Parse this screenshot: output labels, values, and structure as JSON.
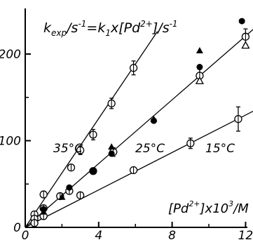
{
  "chart_data": {
    "type": "scatter",
    "title": "k_exp / s⁻¹ = k₁ × [Pd²⁺] / s⁻¹",
    "title_parts": {
      "a": "k",
      "a_sub": "exp",
      "b": "/s",
      "b_sup": "-1",
      "c": "=k",
      "c_sub": "1",
      "d": "x[Pd",
      "d_sup": "2+",
      "e": "]/s",
      "e_sup": "-1"
    },
    "xlabel": "[Pd²⁺]×10³/M",
    "xlabel_parts": {
      "a": "[Pd",
      "a_sup": "2+",
      "b": "]x10",
      "b_sup": "3",
      "c": "/M"
    },
    "ylabel": "",
    "xlim": [
      0,
      12.5
    ],
    "ylim": [
      0,
      250
    ],
    "x_ticks": [
      0,
      4,
      8,
      12
    ],
    "x_tick_labels": [
      "0",
      "4",
      "8",
      "12"
    ],
    "y_ticks": [
      0,
      100,
      200
    ],
    "y_tick_labels": [
      "0",
      "100",
      "200"
    ],
    "grid": false,
    "series": [
      {
        "name": "35°C",
        "marker": "open-circle-tick",
        "fit_slope": 31.4,
        "fit_x_end": 7.2,
        "points": [
          [
            0.5,
            15
          ],
          [
            1,
            38
          ],
          [
            1.9,
            36
          ],
          [
            2.5,
            69
          ],
          [
            3.0,
            89
          ],
          [
            3.7,
            107
          ],
          [
            4.7,
            143
          ],
          [
            5.9,
            184
          ]
        ],
        "error_bars": [
          null,
          null,
          null,
          null,
          5,
          6,
          6,
          8
        ]
      },
      {
        "name": "25°C",
        "marker": "open-circle-tick",
        "fit_slope": 18.4,
        "fit_x_end": 12.5,
        "points": [
          [
            0.5,
            10
          ],
          [
            1.0,
            22
          ],
          [
            2.4,
            42
          ],
          [
            3.7,
            65
          ],
          [
            4.8,
            87
          ],
          [
            9.5,
            175
          ],
          [
            12.0,
            220
          ]
        ],
        "error_bars": [
          null,
          null,
          null,
          null,
          5,
          9,
          9
        ]
      },
      {
        "name": "15°C",
        "marker": "open-circle-tick",
        "fit_slope": 10.8,
        "fit_x_end": 12.5,
        "points": [
          [
            0.5,
            5
          ],
          [
            1.0,
            13
          ],
          [
            3.0,
            37
          ],
          [
            5.9,
            66
          ],
          [
            9.0,
            97
          ],
          [
            11.6,
            125
          ]
        ],
        "error_bars": [
          null,
          null,
          null,
          null,
          6,
          14
        ]
      },
      {
        "name": "",
        "marker": "filled-circle",
        "points": [
          [
            1.0,
            21
          ],
          [
            2.4,
            46
          ],
          [
            3.7,
            65
          ],
          [
            4.7,
            85
          ],
          [
            7.0,
            123
          ],
          [
            9.5,
            185
          ],
          [
            11.8,
            238
          ]
        ]
      },
      {
        "name": "",
        "marker": "filled-triangle",
        "points": [
          [
            1.0,
            18
          ],
          [
            2.0,
            35
          ],
          [
            4.7,
            93
          ],
          [
            7.0,
            125
          ],
          [
            9.5,
            204
          ]
        ]
      },
      {
        "name": "",
        "marker": "open-triangle",
        "points": [
          [
            9.5,
            169
          ],
          [
            12.0,
            210
          ]
        ]
      }
    ],
    "series_labels": [
      "35°C",
      "25°C",
      "15°C"
    ]
  }
}
